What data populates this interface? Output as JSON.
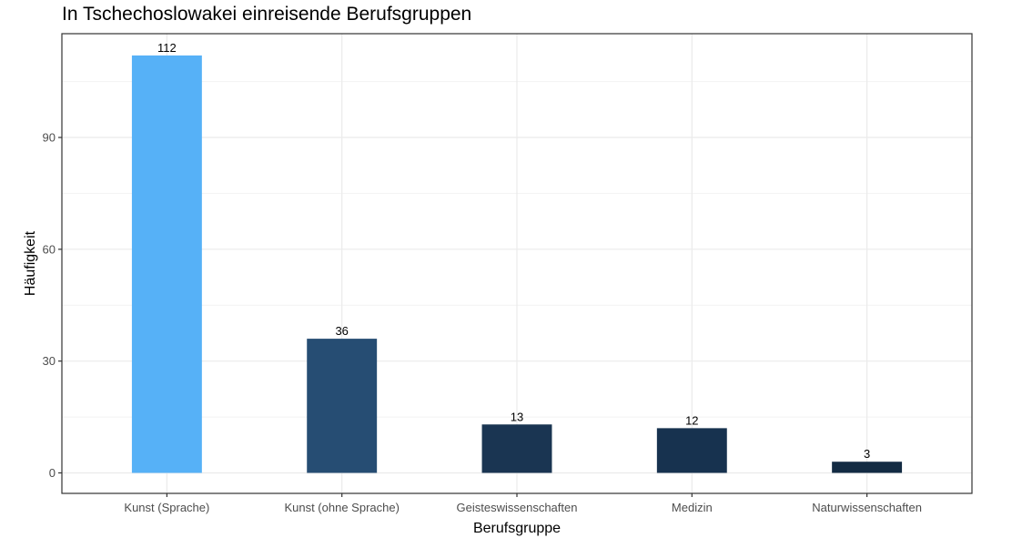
{
  "chart_data": {
    "type": "bar",
    "title": "In Tschechoslowakei einreisende Berufsgruppen",
    "xlabel": "Berufsgruppe",
    "ylabel": "Häufigkeit",
    "categories": [
      "Kunst (Sprache)",
      "Kunst (ohne Sprache)",
      "Geisteswissenschaften",
      "Medizin",
      "Naturwissenschaften"
    ],
    "values": [
      112,
      36,
      13,
      12,
      3
    ],
    "data_labels": [
      "112",
      "36",
      "13",
      "12",
      "3"
    ],
    "bar_colors": [
      "#56B1F7",
      "#264D73",
      "#1A3552",
      "#17324F",
      "#132B43"
    ],
    "ylim": [
      0,
      117.45
    ],
    "yticks": [
      0,
      30,
      60,
      90
    ],
    "ytick_labels": [
      "0",
      "30",
      "60",
      "90"
    ],
    "grid": true,
    "legend": "none"
  },
  "colors": {
    "panel_border": "#333333",
    "grid_major": "#EBEBEB",
    "grid_minor": "#F2F2F2"
  }
}
